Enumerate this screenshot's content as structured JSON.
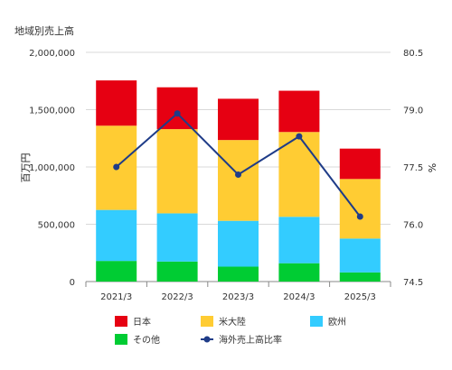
{
  "chart_data": {
    "type": "bar",
    "stacked": true,
    "title": "地域別売上高",
    "categories": [
      "2021/3",
      "2022/3",
      "2023/3",
      "2024/3",
      "2025/3"
    ],
    "series": [
      {
        "name": "その他",
        "color": "#00cc33",
        "values": [
          180000,
          175000,
          130000,
          160000,
          80000
        ]
      },
      {
        "name": "欧州",
        "color": "#33ccff",
        "values": [
          445000,
          420000,
          400000,
          405000,
          295000
        ]
      },
      {
        "name": "米大陸",
        "color": "#ffcc33",
        "values": [
          735000,
          735000,
          705000,
          740000,
          520000
        ]
      },
      {
        "name": "日本",
        "color": "#e60012",
        "values": [
          395000,
          365000,
          360000,
          360000,
          265000
        ]
      }
    ],
    "line_series": {
      "name": "海外売上高比率",
      "color": "#1f3c88",
      "axis": "right",
      "values": [
        77.5,
        78.9,
        77.3,
        78.3,
        76.2
      ]
    },
    "y_left": {
      "label": "百万円",
      "range": [
        0,
        2000000
      ],
      "ticks": [
        "0",
        "500,000",
        "1,000,000",
        "1,500,000",
        "2,000,000"
      ]
    },
    "y_right": {
      "label": "%",
      "range": [
        74.5,
        80.5
      ],
      "ticks": [
        "74.5",
        "76.0",
        "77.5",
        "79.0",
        "80.5"
      ]
    },
    "grid": true,
    "legend": {
      "position": "bottom",
      "order": [
        "日本",
        "米大陸",
        "欧州",
        "その他",
        "海外売上高比率"
      ]
    }
  }
}
